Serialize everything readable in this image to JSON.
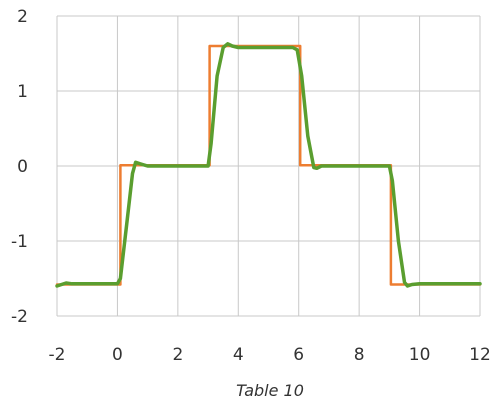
{
  "chart_data": {
    "type": "line",
    "title": "",
    "caption": "Table 10",
    "xlabel": "",
    "ylabel": "",
    "xlim": [
      -2,
      12
    ],
    "ylim": [
      -2,
      2
    ],
    "x_ticks": [
      -2,
      0,
      2,
      4,
      6,
      8,
      10,
      12
    ],
    "y_ticks": [
      -2,
      -1,
      0,
      1,
      2
    ],
    "x_tick_labels": [
      "-2",
      "0",
      "2",
      "4",
      "6",
      "8",
      "10",
      "12"
    ],
    "y_tick_labels": [
      "-2",
      "-1",
      "0",
      "1",
      "2"
    ],
    "grid": true,
    "legend": "none",
    "series": [
      {
        "color": "#ED7D31",
        "x": [
          -2,
          0.1,
          0.1,
          3.05,
          3.05,
          6.05,
          6.05,
          9.05,
          9.05,
          12
        ],
        "y": [
          -1.58,
          -1.58,
          0.01,
          0.01,
          1.6,
          1.6,
          0.01,
          0.01,
          -1.58,
          -1.58
        ]
      },
      {
        "color": "#5A9E2F",
        "x": [
          -2,
          -1.7,
          -1.5,
          0,
          0.1,
          0.3,
          0.5,
          0.6,
          0.75,
          1.0,
          3.0,
          3.1,
          3.3,
          3.5,
          3.65,
          3.8,
          4.0,
          5.8,
          5.95,
          6.1,
          6.3,
          6.5,
          6.6,
          6.75,
          7.0,
          9.0,
          9.1,
          9.3,
          9.5,
          9.6,
          9.75,
          10.0,
          12
        ],
        "y": [
          -1.6,
          -1.56,
          -1.57,
          -1.57,
          -1.5,
          -0.8,
          -0.1,
          0.05,
          0.03,
          0.0,
          0.0,
          0.3,
          1.2,
          1.58,
          1.63,
          1.6,
          1.58,
          1.58,
          1.55,
          1.2,
          0.4,
          -0.02,
          -0.03,
          0.0,
          0.0,
          0.0,
          -0.2,
          -1.0,
          -1.55,
          -1.6,
          -1.58,
          -1.57,
          -1.57
        ]
      }
    ]
  }
}
